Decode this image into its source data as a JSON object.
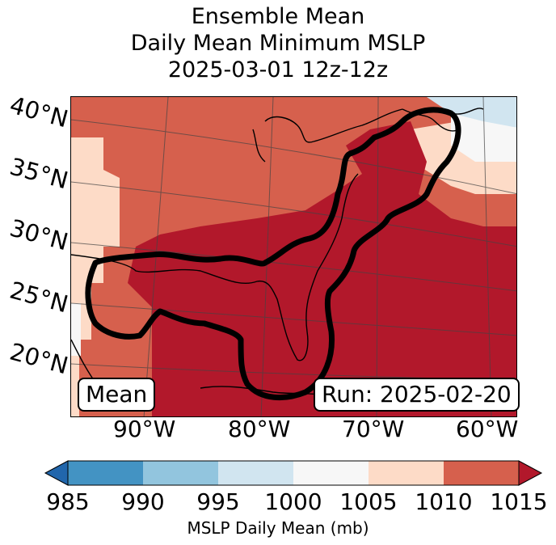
{
  "title": {
    "line1": "Ensemble Mean",
    "line2": "Daily Mean Minimum MSLP",
    "line3": "2025-03-01 12z-12z"
  },
  "map": {
    "lat_labels": [
      "40°N",
      "35°N",
      "30°N",
      "25°N",
      "20°N"
    ],
    "lon_labels": [
      "90°W",
      "80°W",
      "70°W",
      "60°W"
    ],
    "left_box": "Mean",
    "right_box": "Run: 2025-02-20"
  },
  "colorbar": {
    "ticks": [
      "985",
      "990",
      "995",
      "1000",
      "1005",
      "1010",
      "1015"
    ],
    "label": "MSLP Daily Mean (mb)",
    "colors": [
      "#2166ac",
      "#4393c3",
      "#92c5de",
      "#d1e5f0",
      "#f7f7f7",
      "#fddbc7",
      "#d6604d",
      "#b2182b"
    ]
  }
}
